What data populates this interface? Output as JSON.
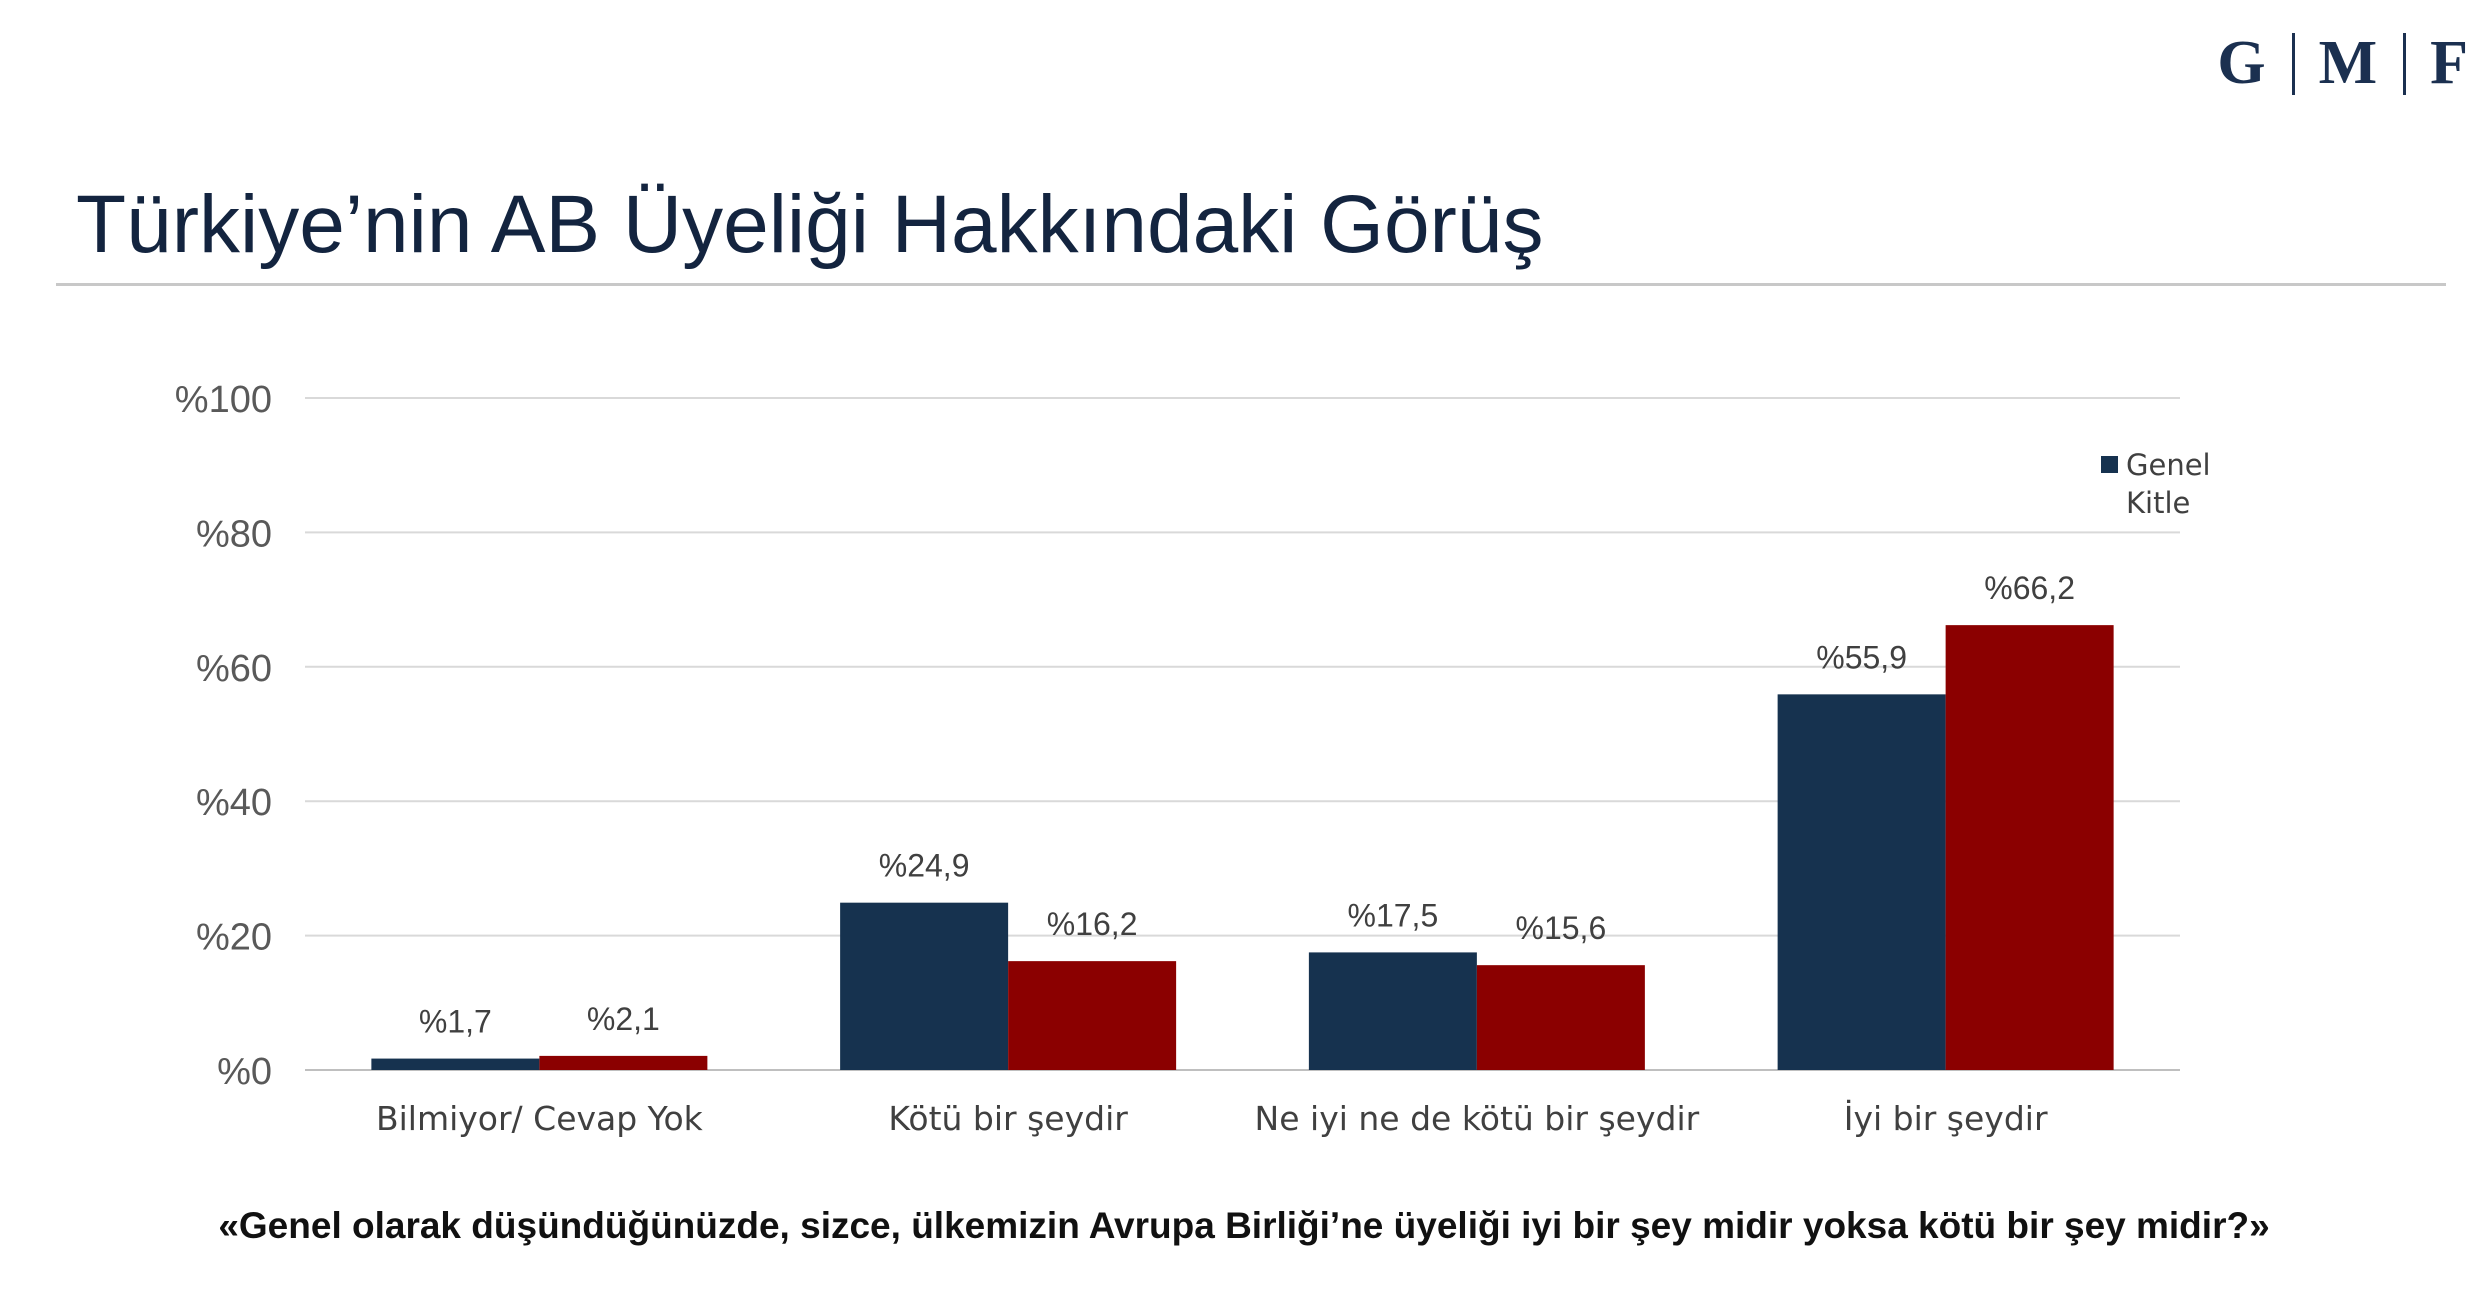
{
  "header": {
    "logo_letters": [
      "G",
      "M",
      "F"
    ],
    "title": "Türkiye’nin AB Üyeliği Hakkındaki Görüş"
  },
  "chart_data": {
    "type": "bar",
    "categories": [
      "Bilmiyor/ Cevap Yok",
      "Kötü bir şeydir",
      "Ne iyi ne de kötü bir şeydir",
      "İyi bir şeydir"
    ],
    "series": [
      {
        "name": "Genel Kitle",
        "color": "#16324f",
        "values": [
          1.7,
          24.9,
          17.5,
          55.9
        ],
        "labels": [
          "%1,7",
          "%24,9",
          "%17,5",
          "%55,9"
        ]
      },
      {
        "color": "#8b0000",
        "values": [
          2.1,
          16.2,
          15.6,
          66.2
        ],
        "labels": [
          "%2,1",
          "%16,2",
          "%15,6",
          "%66,2"
        ]
      }
    ],
    "ylim": [
      0,
      100
    ],
    "yticks": [
      0,
      20,
      40,
      60,
      80,
      100
    ],
    "ytick_labels": [
      "%0",
      "%20",
      "%40",
      "%60",
      "%80",
      "%100"
    ],
    "grid": true,
    "legend_position": "top-right",
    "legend_lines": [
      "Genel",
      "Kitle"
    ]
  },
  "footer": {
    "question": "«Genel olarak düşündüğünüzde, sizce, ülkemizin Avrupa Birliği’ne üyeliği iyi bir şey midir yoksa kötü bir şey midir?»"
  }
}
